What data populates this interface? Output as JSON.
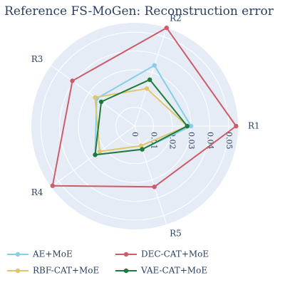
{
  "chart_data": {
    "type": "radar",
    "title": "Reference FS-MoGen: Reconstruction error",
    "axes": [
      "R1",
      "R2",
      "R3",
      "R4",
      "R5"
    ],
    "radial_range": [
      0,
      0.055
    ],
    "radial_ticks": [
      0,
      0.01,
      0.02,
      0.03,
      0.04,
      0.05
    ],
    "radial_tick_labels": [
      "0",
      "0.01",
      "0.02",
      "0.03",
      "0.04",
      "0.05"
    ],
    "grid": true,
    "legend_position": "bottom",
    "series": [
      {
        "name": "AE+MoE",
        "color": "#87ceeb",
        "values": [
          0.03,
          0.034,
          0.025,
          0.026,
          0.013
        ]
      },
      {
        "name": "DEC-CAT+MoE",
        "color": "#cd5c6a",
        "values": [
          0.054,
          0.055,
          0.041,
          0.054,
          0.034
        ]
      },
      {
        "name": "RBF-CAT+MoE",
        "color": "#e0c56e",
        "values": [
          0.028,
          0.021,
          0.026,
          0.023,
          0.011
        ]
      },
      {
        "name": "VAE-CAT+MoE",
        "color": "#1e7b3a",
        "values": [
          0.028,
          0.026,
          0.022,
          0.026,
          0.013
        ]
      }
    ]
  }
}
